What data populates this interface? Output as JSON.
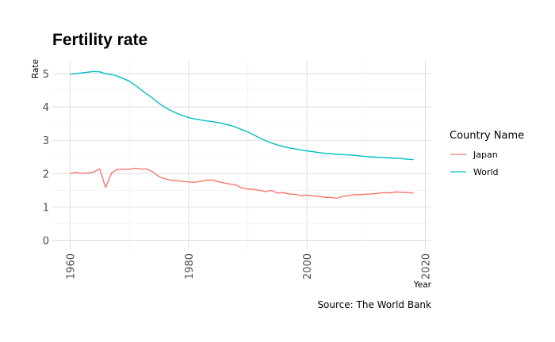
{
  "chart_data": {
    "type": "line",
    "title": "Fertility rate",
    "xlabel": "Year",
    "ylabel": "Rate",
    "caption": "Source: The World Bank",
    "xlim": [
      1960,
      2018
    ],
    "ylim": [
      0,
      5.4
    ],
    "x_ticks": [
      "1960",
      "1980",
      "2000",
      "2020"
    ],
    "y_ticks": [
      "0",
      "1",
      "2",
      "3",
      "4",
      "5"
    ],
    "legend_title": "Country Name",
    "legend_position": "right",
    "grid": true,
    "series": [
      {
        "name": "Japan",
        "color": "#F8766D",
        "x": [
          1960,
          1961,
          1962,
          1963,
          1964,
          1965,
          1966,
          1967,
          1968,
          1969,
          1970,
          1971,
          1972,
          1973,
          1974,
          1975,
          1976,
          1977,
          1978,
          1979,
          1980,
          1981,
          1982,
          1983,
          1984,
          1985,
          1986,
          1987,
          1988,
          1989,
          1990,
          1991,
          1992,
          1993,
          1994,
          1995,
          1996,
          1997,
          1998,
          1999,
          2000,
          2001,
          2002,
          2003,
          2004,
          2005,
          2006,
          2007,
          2008,
          2009,
          2010,
          2011,
          2012,
          2013,
          2014,
          2015,
          2016,
          2017,
          2018
        ],
        "values": [
          2.0,
          2.04,
          2.01,
          2.02,
          2.05,
          2.14,
          1.58,
          2.02,
          2.13,
          2.13,
          2.13,
          2.16,
          2.14,
          2.14,
          2.05,
          1.91,
          1.85,
          1.8,
          1.79,
          1.77,
          1.75,
          1.74,
          1.77,
          1.8,
          1.81,
          1.76,
          1.72,
          1.69,
          1.66,
          1.57,
          1.54,
          1.53,
          1.5,
          1.46,
          1.5,
          1.42,
          1.43,
          1.39,
          1.38,
          1.34,
          1.36,
          1.33,
          1.32,
          1.29,
          1.29,
          1.26,
          1.32,
          1.34,
          1.37,
          1.37,
          1.39,
          1.39,
          1.41,
          1.43,
          1.42,
          1.45,
          1.44,
          1.43,
          1.42
        ]
      },
      {
        "name": "World",
        "color": "#00BFC4",
        "x": [
          1960,
          1961,
          1962,
          1963,
          1964,
          1965,
          1966,
          1967,
          1968,
          1969,
          1970,
          1971,
          1972,
          1973,
          1974,
          1975,
          1976,
          1977,
          1978,
          1979,
          1980,
          1981,
          1982,
          1983,
          1984,
          1985,
          1986,
          1987,
          1988,
          1989,
          1990,
          1991,
          1992,
          1993,
          1994,
          1995,
          1996,
          1997,
          1998,
          1999,
          2000,
          2001,
          2002,
          2003,
          2004,
          2005,
          2006,
          2007,
          2008,
          2009,
          2010,
          2011,
          2012,
          2013,
          2014,
          2015,
          2016,
          2017,
          2018
        ],
        "values": [
          4.98,
          5.0,
          5.02,
          5.04,
          5.06,
          5.05,
          4.99,
          4.97,
          4.92,
          4.85,
          4.77,
          4.65,
          4.51,
          4.38,
          4.25,
          4.11,
          3.99,
          3.89,
          3.81,
          3.74,
          3.68,
          3.64,
          3.61,
          3.58,
          3.56,
          3.53,
          3.49,
          3.45,
          3.39,
          3.32,
          3.25,
          3.16,
          3.07,
          2.99,
          2.92,
          2.86,
          2.81,
          2.77,
          2.74,
          2.71,
          2.68,
          2.66,
          2.63,
          2.61,
          2.6,
          2.58,
          2.57,
          2.56,
          2.55,
          2.53,
          2.51,
          2.5,
          2.49,
          2.48,
          2.47,
          2.46,
          2.45,
          2.43,
          2.42
        ]
      }
    ]
  }
}
